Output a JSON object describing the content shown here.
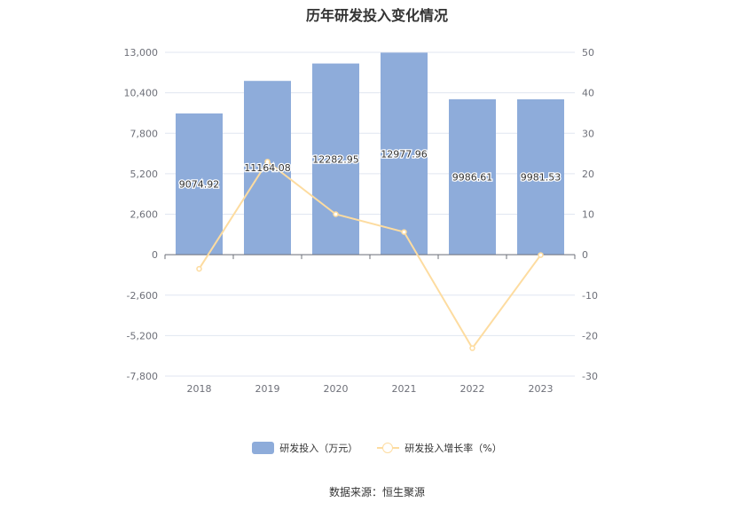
{
  "title": "历年研发投入变化情况",
  "source": "数据来源：恒生聚源",
  "colors": {
    "bar": "#8eacda",
    "line": "#fddca0",
    "grid": "#e0e6f1",
    "axis": "#6e7079"
  },
  "chart_data": {
    "type": "bar",
    "categories": [
      "2018",
      "2019",
      "2020",
      "2021",
      "2022",
      "2023"
    ],
    "series": [
      {
        "name": "研发投入（万元）",
        "type": "bar",
        "axis": "left",
        "values": [
          9074.92,
          11164.08,
          12282.95,
          12977.96,
          9986.61,
          9981.53
        ],
        "labels": [
          "9074.92",
          "11164.08",
          "12282.95",
          "12977.96",
          "9986.61",
          "9981.53"
        ]
      },
      {
        "name": "研发投入增长率（%）",
        "type": "line",
        "axis": "right",
        "values": [
          -3.5,
          23.0,
          10.0,
          5.6,
          -23.1,
          -0.1
        ]
      }
    ],
    "y_left": {
      "min": -7800,
      "max": 13000,
      "ticks": [
        "13,000",
        "10,400",
        "7,800",
        "5,200",
        "2,600",
        "0",
        "-2,600",
        "-5,200",
        "-7,800"
      ]
    },
    "y_right": {
      "min": -30,
      "max": 50,
      "ticks": [
        "50",
        "40",
        "30",
        "20",
        "10",
        "0",
        "-10",
        "-20",
        "-30"
      ]
    },
    "grid": true,
    "legend": "bottom"
  }
}
